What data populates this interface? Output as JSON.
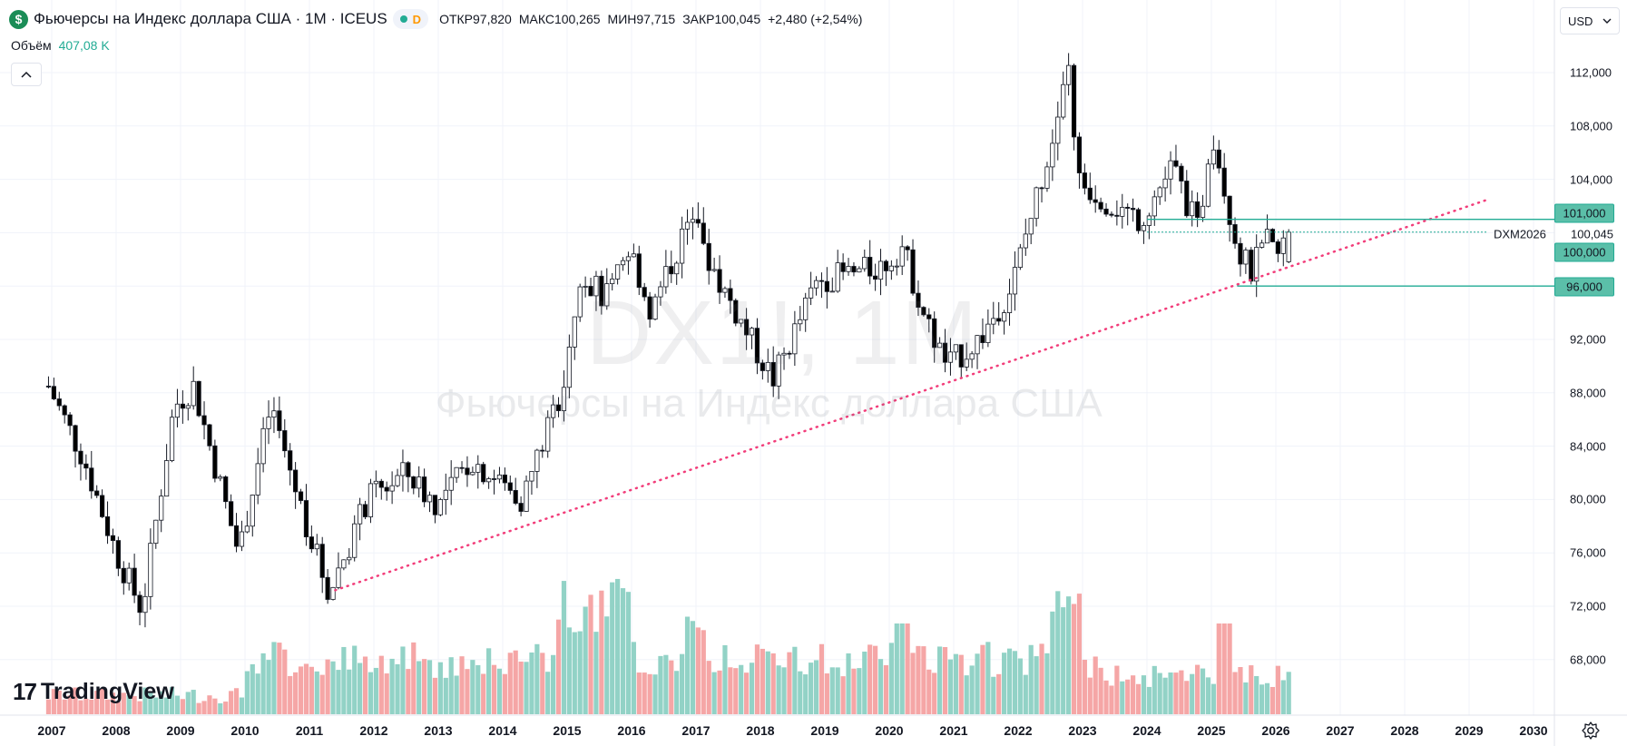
{
  "header": {
    "symbol_icon": "$",
    "title": "Фьючерсы на Индекс доллара США · 1М · ICEUS",
    "status_badge": "D",
    "ohlc": [
      {
        "key": "ОТКР",
        "value": "97,820"
      },
      {
        "key": "МАКС",
        "value": "100,265"
      },
      {
        "key": "МИН",
        "value": "97,715"
      },
      {
        "key": "ЗАКР",
        "value": "100,045"
      }
    ],
    "change": "+2,480 (+2,54%)"
  },
  "volume": {
    "label": "Объём",
    "value": "407,08 K"
  },
  "collapse_icon": "chevron-up-icon",
  "currency": {
    "selected": "USD"
  },
  "watermark": {
    "ticker": "DX1!, 1M",
    "name": "Фьючерсы на Индекс доллара США"
  },
  "logo": {
    "text": "TradingView",
    "mark": "17"
  },
  "colors": {
    "up": "#22ab94",
    "down": "#000000",
    "vol_up": "#92d2c6",
    "vol_down": "#f5a6a6",
    "trend": "#f23d7a",
    "level": "#22ab94"
  },
  "price_axis": {
    "ticks": [
      "112,000",
      "108,000",
      "104,000",
      "92,000",
      "88,000",
      "84,000",
      "80,000",
      "76,000",
      "72,000",
      "68,000"
    ]
  },
  "time_axis": {
    "years": [
      "2007",
      "2008",
      "2009",
      "2010",
      "2011",
      "2012",
      "2013",
      "2014",
      "2015",
      "2016",
      "2017",
      "2018",
      "2019",
      "2020",
      "2021",
      "2022",
      "2023",
      "2024",
      "2025",
      "2026",
      "2027",
      "2028",
      "2029",
      "2030"
    ]
  },
  "price_labels": {
    "level_101": "101,000",
    "last_price": "100,045",
    "level_100": "100,000",
    "level_96": "96,000",
    "contract": "DXM2026"
  },
  "chart_data": {
    "type": "candlestick",
    "interval": "1M",
    "series": [
      {
        "name": "DX1!"
      }
    ],
    "x_range": [
      "2007",
      "2030"
    ],
    "ylim": [
      65,
      115
    ],
    "yearly_close_path": [
      [
        2006.9,
        89.0
      ],
      [
        2007.5,
        83.0
      ],
      [
        2008.0,
        76.0
      ],
      [
        2008.4,
        71.7
      ],
      [
        2008.9,
        87.0
      ],
      [
        2009.2,
        88.5
      ],
      [
        2009.9,
        76.0
      ],
      [
        2010.4,
        87.0
      ],
      [
        2010.9,
        79.0
      ],
      [
        2011.3,
        73.0
      ],
      [
        2011.9,
        80.0
      ],
      [
        2012.5,
        82.0
      ],
      [
        2013.0,
        79.5
      ],
      [
        2013.5,
        83.0
      ],
      [
        2014.3,
        80.0
      ],
      [
        2014.9,
        88.0
      ],
      [
        2015.2,
        97.0
      ],
      [
        2015.6,
        95.0
      ],
      [
        2016.0,
        98.5
      ],
      [
        2016.3,
        94.0
      ],
      [
        2016.9,
        101.0
      ],
      [
        2017.4,
        96.0
      ],
      [
        2017.9,
        91.5
      ],
      [
        2018.2,
        89.0
      ],
      [
        2018.9,
        96.5
      ],
      [
        2019.5,
        97.0
      ],
      [
        2019.9,
        97.5
      ],
      [
        2020.2,
        99.0
      ],
      [
        2020.6,
        93.0
      ],
      [
        2020.9,
        90.0
      ],
      [
        2021.4,
        92.0
      ],
      [
        2021.9,
        96.0
      ],
      [
        2022.3,
        103.0
      ],
      [
        2022.8,
        112.0
      ],
      [
        2022.9,
        104.0
      ],
      [
        2023.5,
        102.0
      ],
      [
        2023.9,
        101.0
      ],
      [
        2024.4,
        105.0
      ],
      [
        2024.8,
        100.0
      ],
      [
        2025.0,
        108.0
      ],
      [
        2025.4,
        99.0
      ],
      [
        2025.6,
        97.0
      ],
      [
        2025.9,
        99.5
      ],
      [
        2026.0,
        97.9
      ],
      [
        2026.2,
        100.045
      ]
    ],
    "last_candle": {
      "open": 97.82,
      "high": 100.265,
      "low": 97.715,
      "close": 100.045
    },
    "horizontal_levels": [
      101.0,
      100.0,
      96.0
    ],
    "trendline": {
      "from": [
        2011.4,
        73.2
      ],
      "to": [
        2029.3,
        102.5
      ],
      "style": "dotted"
    },
    "volume": {
      "last": "407,08 K",
      "peak_date": 2015.2
    }
  }
}
